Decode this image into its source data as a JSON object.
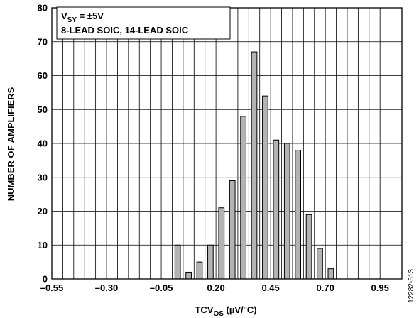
{
  "chart_data": {
    "type": "bar",
    "annotation": {
      "line1": {
        "base": "V",
        "sub": "SY",
        "rest": " = ±5V"
      },
      "line2": "8-LEAD SOIC, 14-LEAD SOIC"
    },
    "xlabel": {
      "base": "TCV",
      "sub": "OS",
      "rest": " (µV/°C)"
    },
    "ylabel": "NUMBER OF AMPLIFIERS",
    "xlim": [
      -0.55,
      1.05
    ],
    "ylim": [
      0,
      80
    ],
    "x_ticks": [
      -0.55,
      -0.3,
      -0.05,
      0.2,
      0.45,
      0.7,
      0.95
    ],
    "x_tick_labels": [
      "–0.55",
      "–0.30",
      "–0.05",
      "0.20",
      "0.45",
      "0.70",
      "0.95"
    ],
    "y_ticks": [
      0,
      10,
      20,
      30,
      40,
      50,
      60,
      70,
      80
    ],
    "y_tick_labels": [
      "0",
      "10",
      "20",
      "30",
      "40",
      "50",
      "60",
      "70",
      "80"
    ],
    "grid": true,
    "bar_width": 0.025,
    "bars": [
      {
        "x": 0.025,
        "value": 10
      },
      {
        "x": 0.075,
        "value": 2
      },
      {
        "x": 0.125,
        "value": 5
      },
      {
        "x": 0.175,
        "value": 10
      },
      {
        "x": 0.225,
        "value": 21
      },
      {
        "x": 0.275,
        "value": 29
      },
      {
        "x": 0.325,
        "value": 48
      },
      {
        "x": 0.375,
        "value": 67
      },
      {
        "x": 0.425,
        "value": 54
      },
      {
        "x": 0.475,
        "value": 41
      },
      {
        "x": 0.525,
        "value": 40
      },
      {
        "x": 0.575,
        "value": 38
      },
      {
        "x": 0.625,
        "value": 19
      },
      {
        "x": 0.675,
        "value": 9
      },
      {
        "x": 0.725,
        "value": 3
      }
    ],
    "colors": {
      "bar_fill": "#b3b3b3",
      "bar_stroke": "#000000",
      "grid": "#000000"
    }
  },
  "figure_id": "12282-513"
}
